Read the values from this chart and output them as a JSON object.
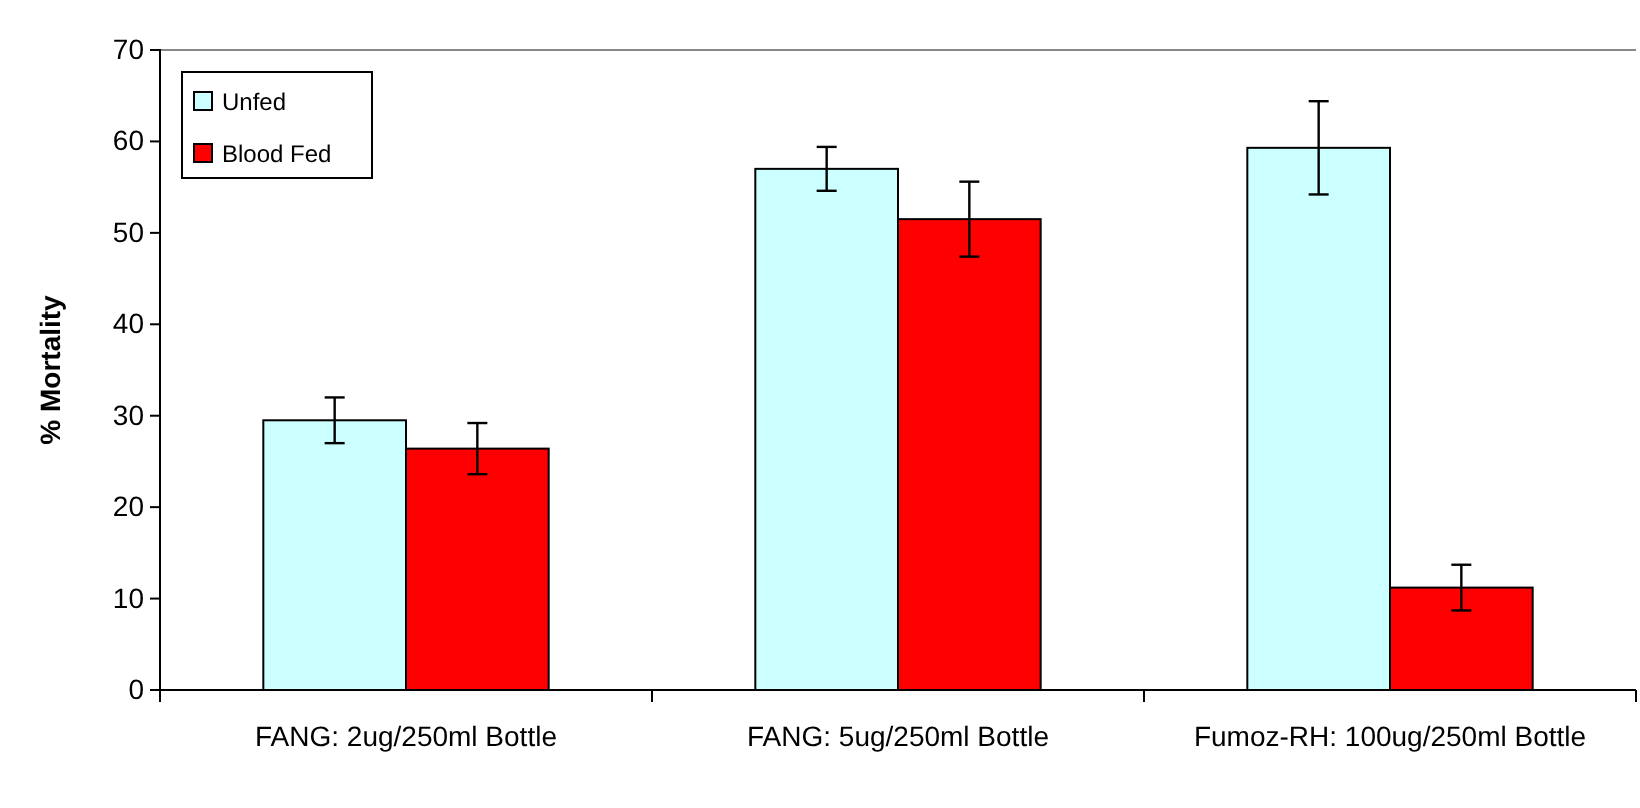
{
  "chart_data": {
    "type": "bar",
    "ylabel": "% Mortality",
    "categories": [
      "FANG: 2ug/250ml Bottle",
      "FANG: 5ug/250ml Bottle",
      "Fumoz-RH: 100ug/250ml Bottle"
    ],
    "series": [
      {
        "name": "Unfed",
        "color": "#ccffff",
        "values": [
          29.5,
          57.0,
          59.3
        ],
        "errors": [
          2.5,
          2.4,
          5.1
        ]
      },
      {
        "name": "Blood Fed",
        "color": "#ff0000",
        "values": [
          26.4,
          51.5,
          11.2
        ],
        "errors": [
          2.8,
          4.1,
          2.5
        ]
      }
    ],
    "ylim": [
      0,
      70
    ],
    "yticks": [
      0,
      10,
      20,
      30,
      40,
      50,
      60,
      70
    ],
    "grid": false,
    "legend": "top left"
  }
}
